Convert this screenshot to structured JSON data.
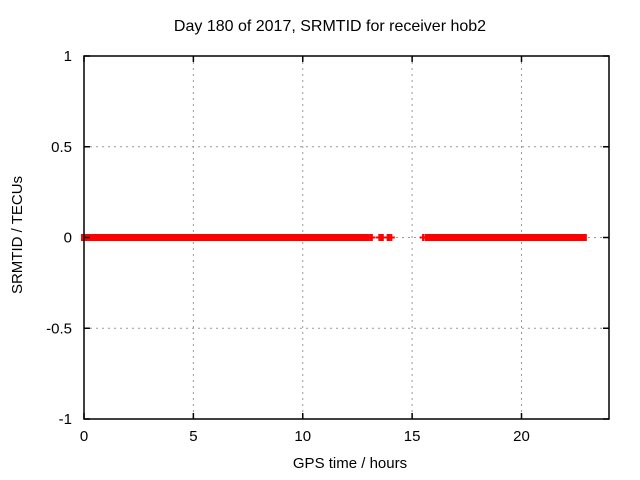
{
  "window": {
    "background": "#ffffff"
  },
  "chart_data": {
    "type": "scatter",
    "title": "Day 180 of 2017, SRMTID for receiver hob2",
    "xlabel": "GPS time / hours",
    "ylabel": "SRMTID / TECUs",
    "xlim": [
      0,
      24
    ],
    "ylim": [
      -1,
      1
    ],
    "grid": true,
    "grid_style": "dotted",
    "legend": false,
    "marker": "plus",
    "xticks": [
      {
        "v": 0,
        "label": "0"
      },
      {
        "v": 5,
        "label": "5"
      },
      {
        "v": 10,
        "label": "10"
      },
      {
        "v": 15,
        "label": "15"
      },
      {
        "v": 20,
        "label": "20"
      }
    ],
    "yticks": [
      {
        "v": 1,
        "label": "1"
      },
      {
        "v": 0.5,
        "label": "0.5"
      },
      {
        "v": 0,
        "label": "0"
      },
      {
        "v": -0.5,
        "label": "-0.5"
      },
      {
        "v": -1,
        "label": "-1"
      }
    ],
    "colors": {
      "series": "#ff0000",
      "grid": "#999999",
      "axis": "#000000",
      "text": "#000000"
    },
    "series": [
      {
        "name": "SRMTID",
        "y_value": 0,
        "dense_segments_hours": [
          [
            0,
            12.9
          ],
          [
            15.7,
            22.85
          ]
        ],
        "sparse_points_hours": [
          13.08,
          13.16,
          13.5,
          13.58,
          13.66,
          13.88,
          13.96,
          14.05,
          15.5
        ]
      }
    ]
  }
}
